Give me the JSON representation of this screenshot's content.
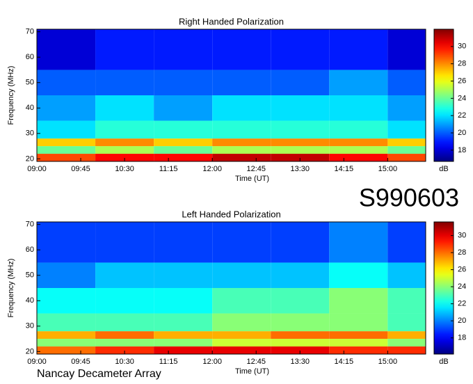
{
  "chart_data": [
    {
      "type": "heatmap",
      "title": "Right Handed Polarization",
      "x_label": "Time (UT)",
      "y_label": "Frequency (MHz)",
      "colorbar_label": "dB",
      "colormap": "jet",
      "xlim": [
        9,
        15.65
      ],
      "xticks": [
        {
          "value": 9,
          "label": "09:00"
        },
        {
          "value": 9.75,
          "label": "09:45"
        },
        {
          "value": 10.5,
          "label": "10:30"
        },
        {
          "value": 11.25,
          "label": "11:15"
        },
        {
          "value": 12,
          "label": "12:00"
        },
        {
          "value": 12.75,
          "label": "12:45"
        },
        {
          "value": 13.5,
          "label": "13:30"
        },
        {
          "value": 14.25,
          "label": "14:15"
        },
        {
          "value": 15,
          "label": "15:00"
        }
      ],
      "ylim": [
        19,
        71
      ],
      "yticks": [
        20,
        30,
        40,
        50,
        60,
        70
      ],
      "clim": [
        16.7,
        32
      ],
      "cticks": [
        18,
        20,
        22,
        24,
        26,
        28,
        30
      ],
      "x_bins": [
        9,
        10,
        11,
        12,
        13,
        14,
        15,
        15.65
      ],
      "y_bins": [
        19,
        22,
        25,
        28,
        35,
        45,
        55,
        71
      ],
      "values": [
        [
          29,
          30,
          30,
          31,
          31,
          30,
          29
        ],
        [
          24,
          25,
          24,
          25,
          25,
          25,
          24
        ],
        [
          27,
          28,
          27,
          28,
          28,
          28,
          27
        ],
        [
          22,
          23,
          23,
          23,
          23,
          23,
          22
        ],
        [
          21,
          22,
          21,
          22,
          22,
          22,
          21
        ],
        [
          20,
          20,
          20,
          20,
          20,
          21,
          20
        ],
        [
          18,
          19,
          19,
          19,
          19,
          19,
          18
        ]
      ]
    },
    {
      "type": "heatmap",
      "title": "Left Handed Polarization",
      "x_label": "Time (UT)",
      "y_label": "Frequency (MHz)",
      "colorbar_label": "dB",
      "colormap": "jet",
      "xlim": [
        9,
        15.65
      ],
      "xticks": [
        {
          "value": 9,
          "label": "09:00"
        },
        {
          "value": 9.75,
          "label": "09:45"
        },
        {
          "value": 10.5,
          "label": "10:30"
        },
        {
          "value": 11.25,
          "label": "11:15"
        },
        {
          "value": 12,
          "label": "12:00"
        },
        {
          "value": 12.75,
          "label": "12:45"
        },
        {
          "value": 13.5,
          "label": "13:30"
        },
        {
          "value": 14.25,
          "label": "14:15"
        },
        {
          "value": 15,
          "label": "15:00"
        }
      ],
      "ylim": [
        19,
        71
      ],
      "yticks": [
        20,
        30,
        40,
        50,
        60,
        70
      ],
      "clim": [
        16.1,
        31.6
      ],
      "cticks": [
        18,
        20,
        22,
        24,
        26,
        28,
        30
      ],
      "x_bins": [
        9,
        10,
        11,
        12,
        13,
        14,
        15,
        15.65
      ],
      "y_bins": [
        19,
        22,
        25,
        28,
        35,
        45,
        55,
        71
      ],
      "values": [
        [
          28,
          29,
          30,
          30,
          30,
          29,
          29
        ],
        [
          24,
          24,
          24,
          25,
          25,
          25,
          24
        ],
        [
          27,
          28,
          27,
          27,
          28,
          28,
          27
        ],
        [
          23,
          23,
          23,
          24,
          24,
          24,
          23
        ],
        [
          22,
          22,
          22,
          23,
          23,
          24,
          23
        ],
        [
          20,
          21,
          21,
          21,
          21,
          22,
          21
        ],
        [
          19,
          19,
          19,
          19,
          19,
          20,
          19
        ]
      ]
    }
  ],
  "annotations": {
    "id": "S990603",
    "footer": "Nancay Decameter Array"
  }
}
